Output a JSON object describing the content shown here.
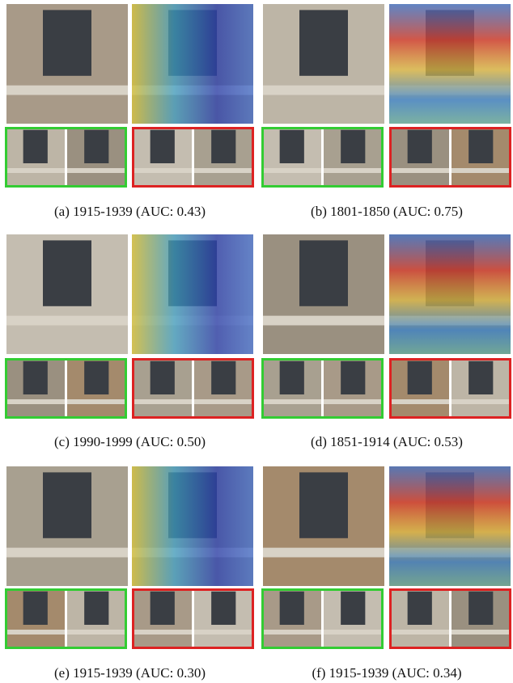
{
  "figure": {
    "captions": [
      "(a) 1915-1939 (AUC: 0.43)",
      "(b) 1801-1850 (AUC: 0.75)",
      "(c) 1990-1999 (AUC: 0.50)",
      "(d) 1851-1914 (AUC: 0.53)",
      "(e) 1915-1939 (AUC: 0.30)",
      "(f) 1915-1939 (AUC: 0.34)"
    ]
  }
}
